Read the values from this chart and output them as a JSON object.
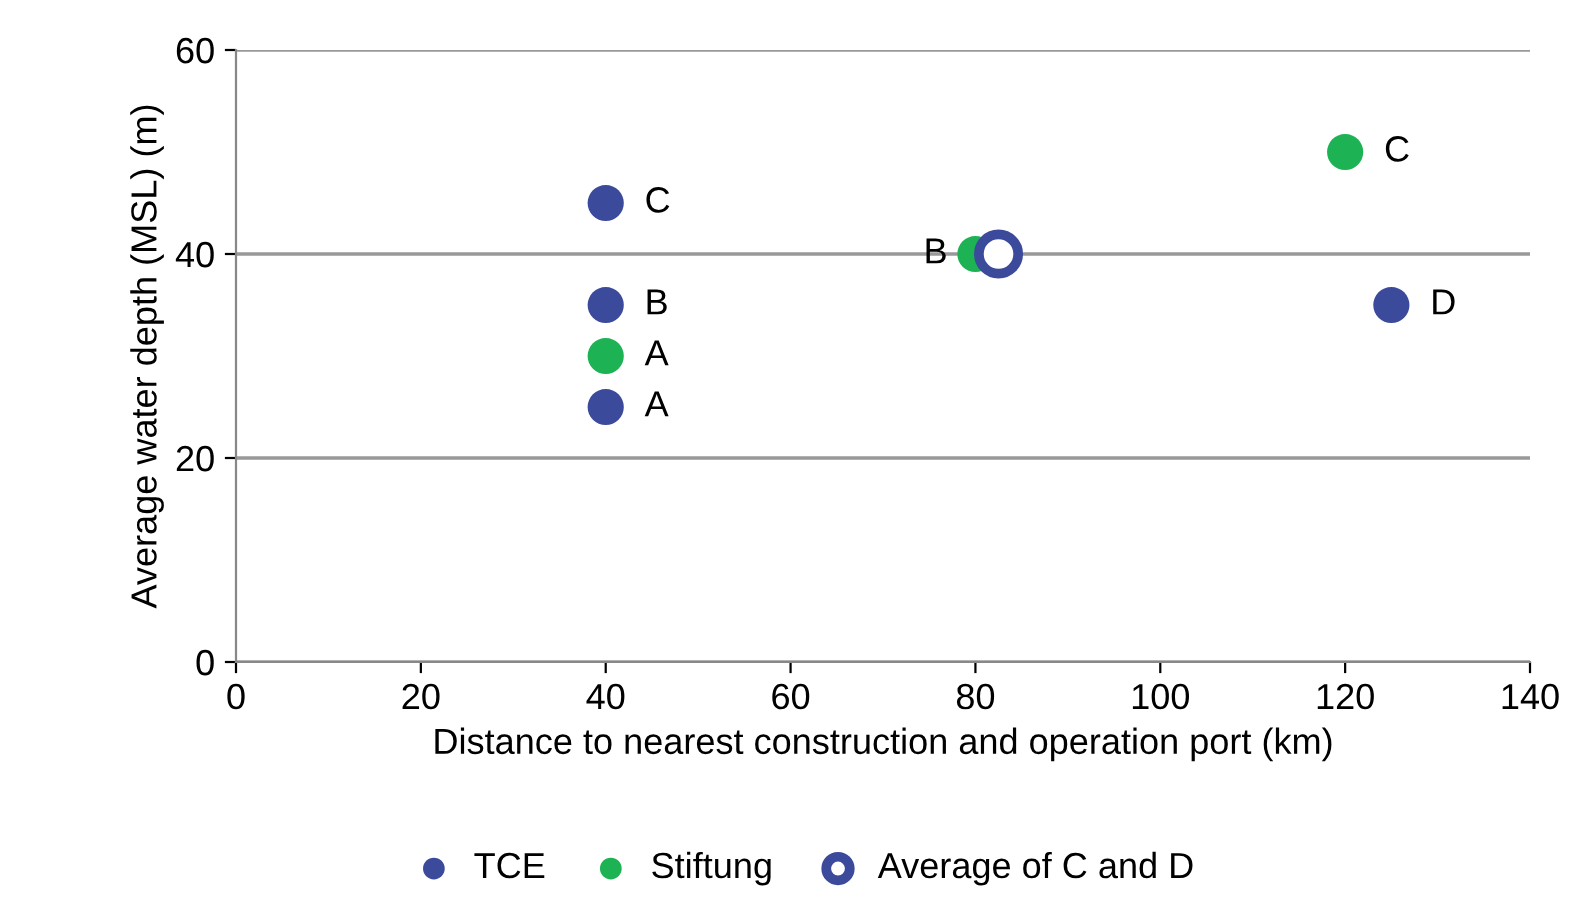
{
  "chart_data": {
    "type": "scatter",
    "xlabel": "Distance to nearest construction and operation port (km)",
    "ylabel": "Average water depth (MSL) (m)",
    "xlim": [
      0,
      140
    ],
    "xticks": [
      0,
      20,
      40,
      60,
      80,
      100,
      120,
      140
    ],
    "ylim": [
      0,
      60
    ],
    "yticks": [
      0,
      20,
      40,
      60
    ],
    "grid": "y",
    "legend": "bottom",
    "marker": "circle",
    "series": [
      {
        "name": "TCE",
        "color": "#3c4a9c",
        "x": [
          40,
          40,
          40,
          125
        ],
        "values": [
          45,
          35,
          25,
          35
        ]
      },
      {
        "name": "Stiftung",
        "color": "#1db254",
        "x": [
          40,
          80,
          120
        ],
        "values": [
          30,
          40,
          50
        ]
      },
      {
        "name": "Average of C and D",
        "color": "#3c4a9c",
        "marker": "circle",
        "x": [
          82.5
        ],
        "values": [
          40
        ]
      }
    ],
    "annotations": [
      {
        "text": "C",
        "x": 40,
        "y": 45
      },
      {
        "text": "B",
        "x": 40,
        "y": 35
      },
      {
        "text": "A",
        "x": 40,
        "y": 30
      },
      {
        "text": "A",
        "x": 40,
        "y": 25
      },
      {
        "text": "D",
        "x": 125,
        "y": 35
      },
      {
        "text": "B",
        "x": 80,
        "y": 40
      },
      {
        "text": "C",
        "x": 120,
        "y": 50
      }
    ]
  }
}
